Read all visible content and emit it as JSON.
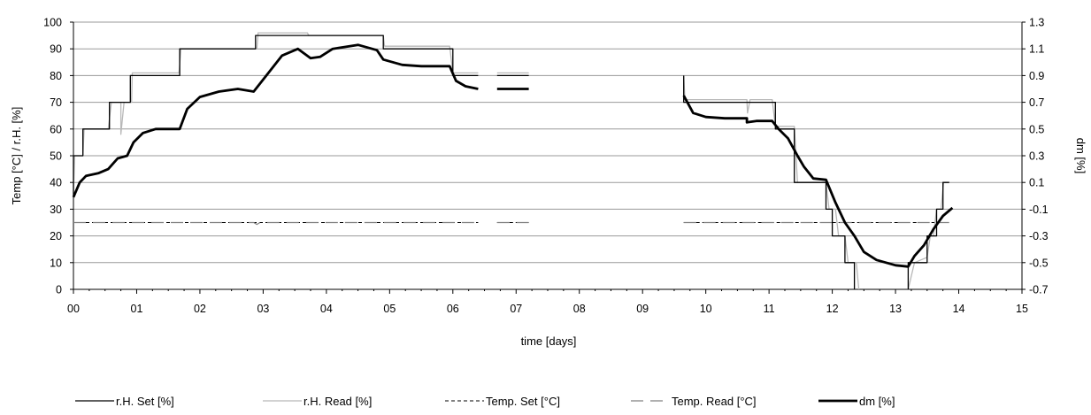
{
  "chart_data": {
    "type": "line",
    "title": "",
    "xlabel": "time [days]",
    "ylabel_left": "Temp [°C] / r.H. [%]",
    "ylabel_right": "dm [%]",
    "xlim": [
      0,
      15
    ],
    "ylim_left": [
      0,
      100
    ],
    "ylim_right": [
      -0.7,
      1.3
    ],
    "grid": "horizontal",
    "legend_position": "bottom",
    "x_tick_labels": [
      "00",
      "01",
      "02",
      "03",
      "04",
      "05",
      "06",
      "07",
      "08",
      "09",
      "10",
      "11",
      "12",
      "13",
      "14",
      "15"
    ],
    "y_left_tick_labels": [
      "0",
      "10",
      "20",
      "30",
      "40",
      "50",
      "60",
      "70",
      "80",
      "90",
      "100"
    ],
    "y_right_tick_labels": [
      "-0.7",
      "-0.5",
      "-0.3",
      "-0.1",
      "0.1",
      "0.3",
      "0.5",
      "0.7",
      "0.9",
      "1.1",
      "1.3"
    ],
    "series": [
      {
        "name": "r.H. Set [%]",
        "axis": "left",
        "color": "#000000",
        "style": "solid-thin",
        "segments": [
          [
            [
              0,
              35
            ],
            [
              0,
              50
            ],
            [
              0.15,
              50
            ],
            [
              0.15,
              60
            ],
            [
              0.57,
              60
            ],
            [
              0.57,
              70
            ],
            [
              0.9,
              70
            ],
            [
              0.9,
              80
            ],
            [
              1.68,
              80
            ],
            [
              1.68,
              90
            ],
            [
              2.88,
              90
            ],
            [
              2.88,
              95
            ],
            [
              3.75,
              95
            ],
            [
              3.75,
              95
            ],
            [
              4.9,
              95
            ],
            [
              4.9,
              90
            ],
            [
              6,
              90
            ],
            [
              6,
              80
            ],
            [
              6.4,
              80
            ]
          ],
          [
            [
              6.7,
              80
            ],
            [
              7.2,
              80
            ]
          ],
          [
            [
              9.65,
              80
            ],
            [
              9.65,
              70
            ],
            [
              10.65,
              70
            ],
            [
              10.65,
              70
            ],
            [
              11.1,
              70
            ],
            [
              11.1,
              60
            ],
            [
              11.4,
              60
            ],
            [
              11.4,
              40
            ],
            [
              11.9,
              40
            ],
            [
              11.9,
              30
            ],
            [
              12,
              30
            ],
            [
              12,
              20
            ],
            [
              12.2,
              20
            ],
            [
              12.2,
              10
            ],
            [
              12.35,
              10
            ],
            [
              12.35,
              0
            ]
          ],
          [
            [
              13.2,
              0
            ],
            [
              13.2,
              10
            ],
            [
              13.5,
              10
            ],
            [
              13.5,
              20
            ],
            [
              13.65,
              20
            ],
            [
              13.65,
              30
            ],
            [
              13.75,
              30
            ],
            [
              13.75,
              40
            ],
            [
              13.85,
              40
            ]
          ]
        ]
      },
      {
        "name": "r.H. Read [%]",
        "axis": "left",
        "color": "#b8b8b8",
        "style": "solid-thin",
        "segments": [
          [
            [
              0,
              36
            ],
            [
              0.02,
              50
            ],
            [
              0.15,
              50
            ],
            [
              0.17,
              60
            ],
            [
              0.55,
              60
            ],
            [
              0.6,
              70
            ],
            [
              0.75,
              70
            ],
            [
              0.75,
              58
            ],
            [
              0.8,
              70
            ],
            [
              0.92,
              70
            ],
            [
              0.93,
              81
            ],
            [
              1.67,
              81
            ],
            [
              1.7,
              90
            ],
            [
              2.9,
              90
            ],
            [
              2.92,
              96
            ],
            [
              3.7,
              96
            ],
            [
              3.72,
              95
            ],
            [
              4.9,
              95
            ],
            [
              4.92,
              91
            ],
            [
              5.95,
              91
            ],
            [
              6,
              81
            ],
            [
              6.4,
              81
            ]
          ],
          [
            [
              6.7,
              81
            ],
            [
              7.2,
              81
            ]
          ],
          [
            [
              9.65,
              80
            ],
            [
              9.67,
              71
            ],
            [
              10.65,
              71
            ],
            [
              10.66,
              66
            ],
            [
              10.7,
              71
            ],
            [
              11.05,
              71
            ],
            [
              11.1,
              61
            ],
            [
              11.4,
              61
            ],
            [
              11.45,
              40
            ],
            [
              11.9,
              40
            ],
            [
              11.95,
              30
            ],
            [
              12.05,
              30
            ],
            [
              12.1,
              20
            ],
            [
              12.2,
              20
            ],
            [
              12.25,
              10
            ],
            [
              12.38,
              10
            ],
            [
              12.42,
              0
            ]
          ],
          [
            [
              13.2,
              0
            ],
            [
              13.3,
              10
            ],
            [
              13.5,
              12
            ],
            [
              13.55,
              20
            ],
            [
              13.6,
              20
            ],
            [
              13.65,
              30
            ],
            [
              13.72,
              30
            ],
            [
              13.76,
              40
            ],
            [
              13.85,
              40
            ]
          ]
        ]
      },
      {
        "name": "Temp. Set [°C]",
        "axis": "left",
        "color": "#000000",
        "style": "dashed",
        "segments": [
          [
            [
              0,
              25
            ],
            [
              6.4,
              25
            ]
          ],
          [
            [
              6.7,
              25
            ],
            [
              7.2,
              25
            ]
          ],
          [
            [
              9.65,
              25
            ],
            [
              13.85,
              25
            ]
          ]
        ]
      },
      {
        "name": "Temp. Read [°C]",
        "axis": "left",
        "color": "#808080",
        "style": "long-dash",
        "segments": [
          [
            [
              0,
              25
            ],
            [
              2.85,
              25
            ],
            [
              2.9,
              24.3
            ],
            [
              2.95,
              25
            ],
            [
              6.4,
              25
            ]
          ],
          [
            [
              6.7,
              25
            ],
            [
              7.2,
              25
            ]
          ],
          [
            [
              9.65,
              25
            ],
            [
              13.85,
              25
            ]
          ]
        ]
      },
      {
        "name": "dm [%]",
        "axis": "right",
        "color": "#000000",
        "style": "solid-thick",
        "segments": [
          [
            [
              0,
              -0.01
            ],
            [
              0.1,
              0.1
            ],
            [
              0.2,
              0.15
            ],
            [
              0.4,
              0.17
            ],
            [
              0.55,
              0.2
            ],
            [
              0.7,
              0.28
            ],
            [
              0.85,
              0.3
            ],
            [
              0.95,
              0.4
            ],
            [
              1.1,
              0.47
            ],
            [
              1.3,
              0.5
            ],
            [
              1.5,
              0.5
            ],
            [
              1.68,
              0.5
            ],
            [
              1.8,
              0.65
            ],
            [
              2,
              0.74
            ],
            [
              2.3,
              0.78
            ],
            [
              2.6,
              0.8
            ],
            [
              2.85,
              0.78
            ],
            [
              3.05,
              0.9
            ],
            [
              3.3,
              1.05
            ],
            [
              3.55,
              1.1
            ],
            [
              3.75,
              1.03
            ],
            [
              3.9,
              1.04
            ],
            [
              4.1,
              1.1
            ],
            [
              4.5,
              1.13
            ],
            [
              4.8,
              1.09
            ],
            [
              4.9,
              1.02
            ],
            [
              5.2,
              0.98
            ],
            [
              5.5,
              0.97
            ],
            [
              5.95,
              0.97
            ],
            [
              6.05,
              0.86
            ],
            [
              6.2,
              0.82
            ],
            [
              6.4,
              0.8
            ]
          ],
          [
            [
              6.7,
              0.8
            ],
            [
              7.2,
              0.8
            ]
          ],
          [
            [
              9.65,
              0.75
            ],
            [
              9.8,
              0.62
            ],
            [
              10,
              0.59
            ],
            [
              10.3,
              0.58
            ],
            [
              10.65,
              0.58
            ],
            [
              10.65,
              0.55
            ],
            [
              10.8,
              0.56
            ],
            [
              11.05,
              0.56
            ],
            [
              11.15,
              0.5
            ],
            [
              11.3,
              0.43
            ],
            [
              11.45,
              0.3
            ],
            [
              11.55,
              0.22
            ],
            [
              11.7,
              0.13
            ],
            [
              11.9,
              0.12
            ],
            [
              12.05,
              -0.05
            ],
            [
              12.2,
              -0.2
            ],
            [
              12.35,
              -0.3
            ],
            [
              12.5,
              -0.42
            ],
            [
              12.7,
              -0.48
            ],
            [
              13,
              -0.52
            ],
            [
              13.2,
              -0.53
            ],
            [
              13.3,
              -0.45
            ],
            [
              13.45,
              -0.37
            ],
            [
              13.6,
              -0.25
            ],
            [
              13.75,
              -0.15
            ],
            [
              13.9,
              -0.09
            ]
          ]
        ]
      }
    ]
  },
  "legend": [
    {
      "label": "r.H. Set   [%]",
      "color": "#000000",
      "style": "solid-thin"
    },
    {
      "label": "r.H. Read [%]",
      "color": "#b8b8b8",
      "style": "solid-thin"
    },
    {
      "label": "Temp. Set [°C]",
      "color": "#000000",
      "style": "dashed"
    },
    {
      "label": "Temp. Read [°C]",
      "color": "#808080",
      "style": "long-dash"
    },
    {
      "label": "dm [%]",
      "color": "#000000",
      "style": "solid-thick"
    }
  ]
}
